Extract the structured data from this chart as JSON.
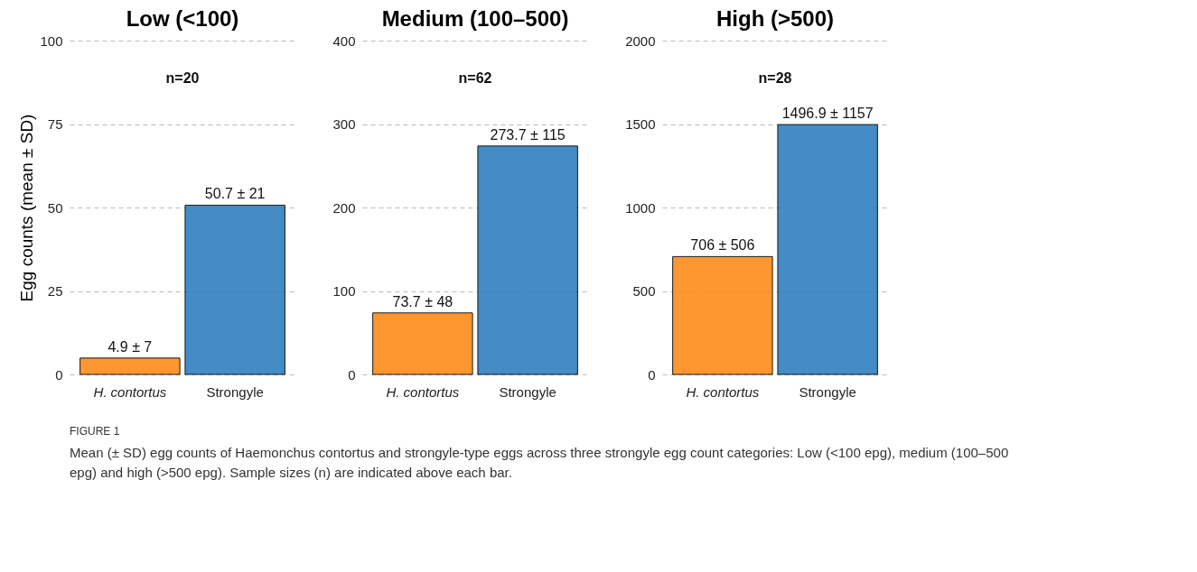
{
  "chart_data": [
    {
      "type": "bar",
      "title": "Low (<100)",
      "ylabel": "Egg counts (mean ± SD)",
      "categories": [
        "H. contortus",
        "Strongyle"
      ],
      "values": [
        4.9,
        50.7
      ],
      "colors": [
        "#ff8c1a",
        "#2f80bf"
      ],
      "value_labels": [
        "4.9 ± 7",
        "50.7 ± 21"
      ],
      "ylim": [
        0,
        100
      ],
      "yticks": [
        0,
        25,
        50,
        75,
        100
      ],
      "grid": "y",
      "legend": false,
      "annotations": [
        "n=20",
        "FIGURE 1",
        "Mean (± SD) egg counts of Haemonchus contortus and strongyle-type eggs across three strongyle egg count categories: Low (<100 epg), medium (100–500 epg) and high (>500 epg). Sample sizes (n) are indicated above each bar."
      ]
    },
    {
      "type": "bar",
      "title": "Medium (100–500)",
      "categories": [
        "H. contortus",
        "Strongyle"
      ],
      "values": [
        73.7,
        273.7
      ],
      "colors": [
        "#ff8c1a",
        "#2f80bf"
      ],
      "value_labels": [
        "73.7 ± 48",
        "273.7 ± 115"
      ],
      "ylim": [
        0,
        400
      ],
      "yticks": [
        0,
        100,
        200,
        300,
        400
      ],
      "grid": "y",
      "legend": false,
      "annotations": [
        "n=62"
      ]
    },
    {
      "type": "bar",
      "title": "High (>500)",
      "categories": [
        "H. contortus",
        "Strongyle"
      ],
      "values": [
        706,
        1496.9
      ],
      "colors": [
        "#ff8c1a",
        "#2f80bf"
      ],
      "value_labels": [
        "706 ± 506",
        "1496.9 ± 1157"
      ],
      "ylim": [
        0,
        2000
      ],
      "yticks": [
        0,
        500,
        1000,
        1500,
        2000
      ],
      "grid": "y",
      "legend": false,
      "annotations": [
        "n=28"
      ]
    }
  ]
}
